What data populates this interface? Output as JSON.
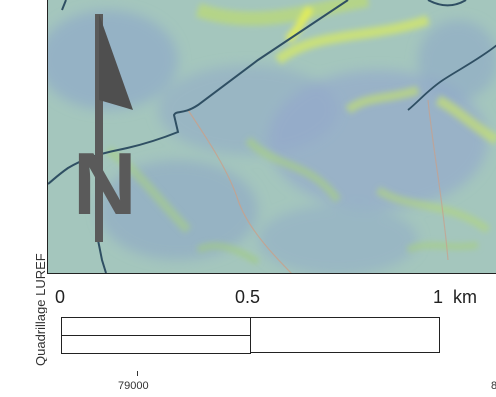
{
  "map": {
    "grid_label": "Quadrillage LUREF",
    "north_arrow_letter": "N",
    "scale_bar": {
      "labels": [
        "0",
        "0.5",
        "1"
      ],
      "unit": "km"
    },
    "x_ticks": [
      "79000",
      "8"
    ],
    "colors": {
      "terrain_base": "#9fc5c0",
      "terrain_blue": "#8fa9c9",
      "terrain_green": "#b9d87a",
      "terrain_yellow": "#e6ee55",
      "boundary_line": "#2f4f63",
      "road_line": "#c9a08a",
      "arrow": "#555555"
    }
  }
}
